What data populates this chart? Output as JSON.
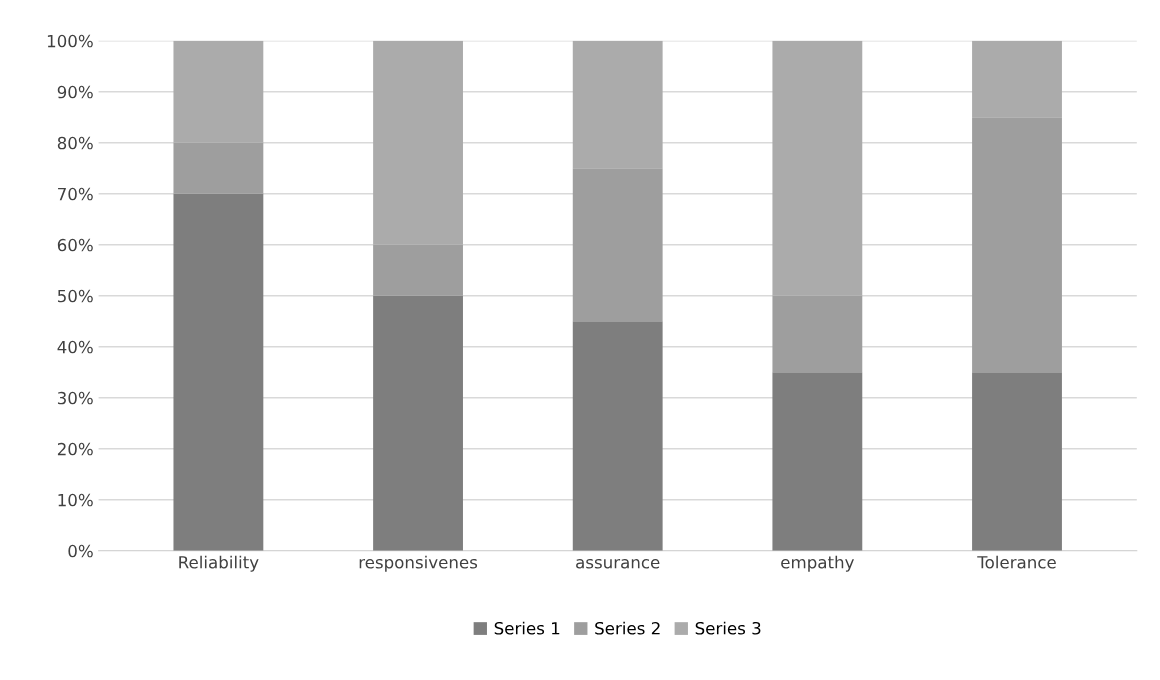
{
  "chart_data": {
    "type": "bar",
    "stacked": true,
    "categories": [
      "Reliability",
      "responsivenes",
      "assurance",
      "empathy",
      "Tolerance"
    ],
    "series": [
      {
        "name": "Series 1",
        "color": "#7e7e7e",
        "values": [
          70,
          50,
          45,
          35,
          35
        ]
      },
      {
        "name": "Series 2",
        "color": "#9e9e9e",
        "values": [
          10,
          10,
          30,
          15,
          50
        ]
      },
      {
        "name": "Series 3",
        "color": "#ababab",
        "values": [
          20,
          40,
          25,
          50,
          15
        ]
      }
    ],
    "ylim": [
      0,
      100
    ],
    "yticks": [
      {
        "value": 0,
        "label": "0%"
      },
      {
        "value": 10,
        "label": "10%"
      },
      {
        "value": 20,
        "label": "20%"
      },
      {
        "value": 30,
        "label": "30%"
      },
      {
        "value": 40,
        "label": "40%"
      },
      {
        "value": 50,
        "label": "50%"
      },
      {
        "value": 60,
        "label": "60%"
      },
      {
        "value": 70,
        "label": "70%"
      },
      {
        "value": 80,
        "label": "80%"
      },
      {
        "value": 90,
        "label": "90%"
      },
      {
        "value": 100,
        "label": "100%"
      }
    ],
    "grid": "y",
    "legend": "bottom"
  }
}
